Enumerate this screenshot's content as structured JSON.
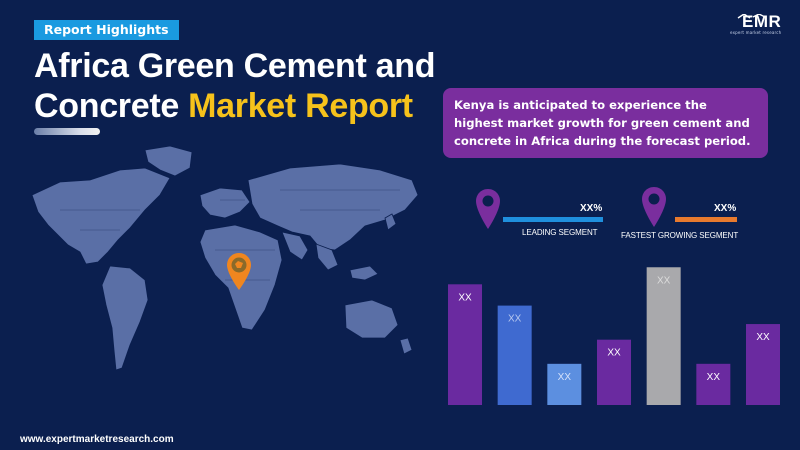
{
  "header": {
    "badge": "Report Highlights",
    "title_line1": "Africa Green Cement and",
    "title_line2_white": "Concrete ",
    "title_line2_highlight": "Market Report"
  },
  "logo": {
    "text": "EMR",
    "sub": "expert market research"
  },
  "callout": {
    "text": "Kenya is anticipated to experience the highest market growth for green cement and concrete in Africa during the forecast period."
  },
  "segments": {
    "leading": {
      "value": "XX%",
      "label": "LEADING SEGMENT",
      "bar_color": "#1f8fdd"
    },
    "fastest": {
      "value": "XX%",
      "label": "FASTEST GROWING SEGMENT",
      "bar_color": "#e87a2e"
    }
  },
  "map_marker": {
    "icon": "location-pin-icon",
    "color": "#f0861f"
  },
  "footer": {
    "url": "www.expertmarketresearch.com"
  },
  "chart_data": {
    "type": "bar",
    "categories": [
      "",
      "",
      "",
      "",
      "",
      "",
      ""
    ],
    "values": [
      0.85,
      0.7,
      0.29,
      0.46,
      0.97,
      0.29,
      0.57
    ],
    "data_labels": [
      "XX",
      "XX",
      "XX",
      "XX",
      "XX",
      "XX",
      "XX"
    ],
    "colors": [
      "#6a2aa0",
      "#3f6ad0",
      "#5c8fe0",
      "#6a2aa0",
      "#a9a9ac",
      "#6a2aa0",
      "#6a2aa0"
    ],
    "label_colors": [
      "#ffffff",
      "#b7c8f0",
      "#d6e2fa",
      "#ffffff",
      "#dcdcdc",
      "#ffffff",
      "#ffffff"
    ],
    "title": "",
    "xlabel": "",
    "ylabel": "",
    "ylim": [
      0,
      1
    ],
    "grid": false,
    "legend": "none"
  }
}
